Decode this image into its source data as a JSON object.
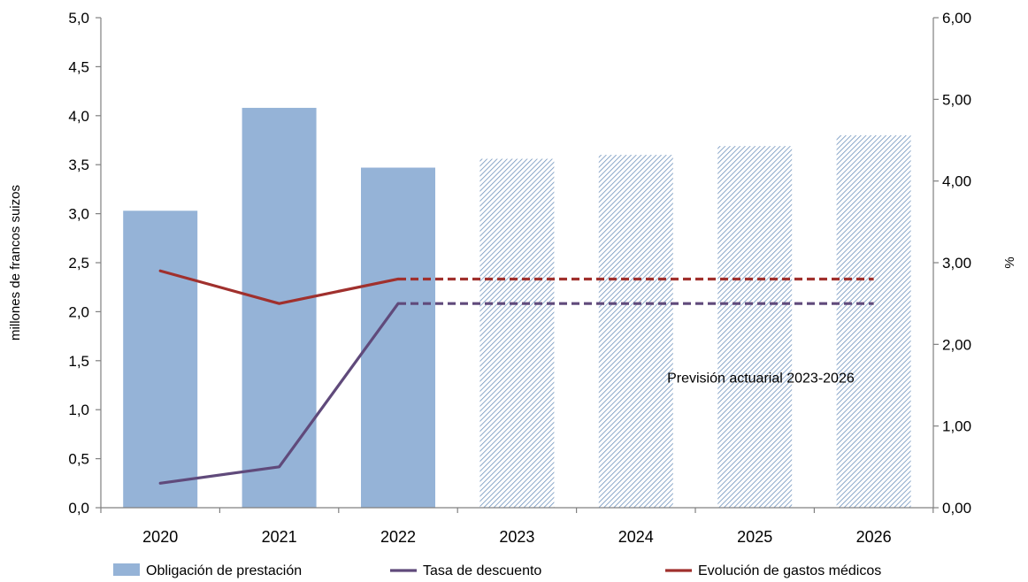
{
  "chart_data": {
    "type": "bar",
    "categories": [
      "2020",
      "2021",
      "2022",
      "2023",
      "2024",
      "2025",
      "2026"
    ],
    "bars": {
      "name": "Obligación de prestación",
      "values": [
        3.03,
        4.08,
        3.47,
        3.56,
        3.6,
        3.69,
        3.8
      ],
      "projected_from_index": 3,
      "color": "#95b3d7",
      "hatch_color": "#6f93bd"
    },
    "lines": [
      {
        "name": "Tasa de descuento",
        "values": [
          0.3,
          0.5,
          2.5,
          2.5,
          2.5,
          2.5,
          2.5
        ],
        "color": "#604a7b",
        "dashed_from_index": 2,
        "axis": "right"
      },
      {
        "name": "Evolución de gastos médicos",
        "values": [
          2.9,
          2.5,
          2.8,
          2.8,
          2.8,
          2.8,
          2.8
        ],
        "color": "#a0302d",
        "dashed_from_index": 2,
        "axis": "right"
      }
    ],
    "ylabel": "millones de francos suizos",
    "ylim": [
      0,
      5
    ],
    "yticks": [
      "0,0",
      "0,5",
      "1,0",
      "1,5",
      "2,0",
      "2,5",
      "3,0",
      "3,5",
      "4,0",
      "4,5",
      "5,0"
    ],
    "y2label": "%",
    "y2lim": [
      0,
      6
    ],
    "y2ticks": [
      "0,00",
      "1,00",
      "2,00",
      "3,00",
      "4,00",
      "5,00",
      "6,00"
    ],
    "annotation": "Previsión actuarial 2023-2026",
    "annotation_anchor": {
      "x": 5.05,
      "y2": 1.6
    },
    "grid": false,
    "legend_position": "bottom"
  }
}
